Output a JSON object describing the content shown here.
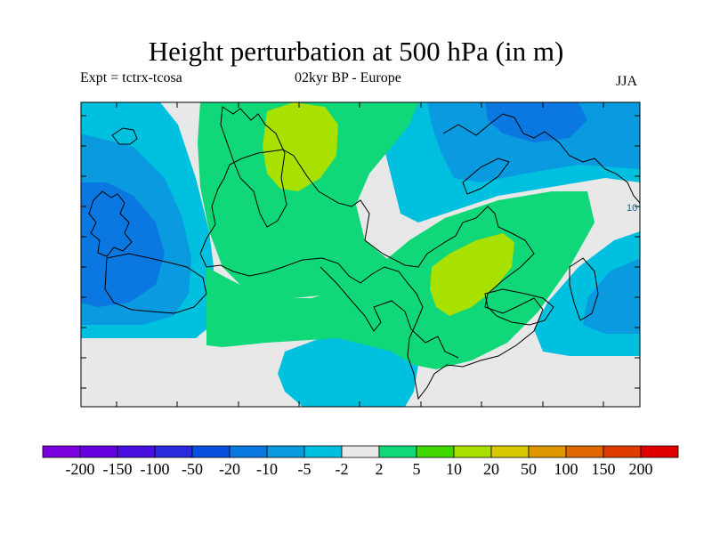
{
  "chart_data": {
    "type": "heatmap",
    "title": "Height perturbation at 500 hPa (in m)",
    "experiment_label": "Expt = tctrx-tcosa",
    "period_label": "02kyr BP - Europe",
    "season_label": "JJA",
    "colorbar": {
      "tick_labels": [
        "-200",
        "-150",
        "-100",
        "-50",
        "-20",
        "-10",
        "-5",
        "-2",
        "2",
        "5",
        "10",
        "20",
        "50",
        "100",
        "150",
        "200"
      ],
      "colors": [
        "#7a00e0",
        "#6500e0",
        "#4a10e0",
        "#2a2ae0",
        "#0a50e0",
        "#0a78e0",
        "#0a9ae0",
        "#00c0e0",
        "#e8e8e8",
        "#10d878",
        "#40d800",
        "#a8e000",
        "#d8c800",
        "#e09800",
        "#e06800",
        "#e03c00",
        "#e00000"
      ]
    },
    "field_colors": {
      "neutral": "#e8e8e8",
      "weak_positive": "#10d878",
      "moderate_positive": "#a8e000",
      "weak_negative": "#00c0e0",
      "negative": "#0a9ae0",
      "strong_negative": "#0a78e0"
    },
    "contour_label": "10"
  }
}
